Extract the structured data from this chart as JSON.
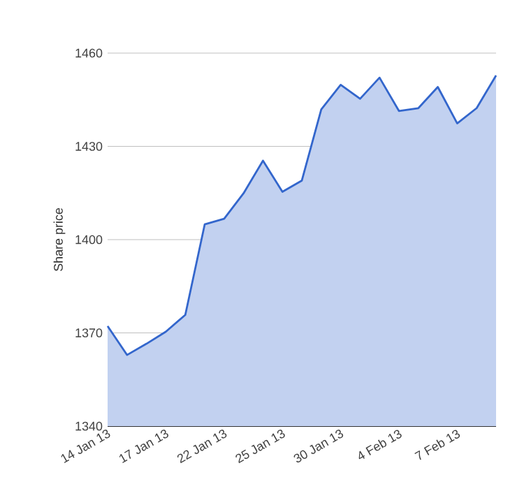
{
  "chart_data": {
    "type": "area",
    "ylabel": "Share price",
    "categories": [
      "14 Jan 13",
      null,
      null,
      "17 Jan 13",
      null,
      null,
      "22 Jan 13",
      null,
      null,
      "25 Jan 13",
      null,
      null,
      "30 Jan 13",
      null,
      null,
      "4 Feb 13",
      null,
      null,
      "7 Feb 13",
      null,
      null
    ],
    "series": [
      {
        "color": "#3366cc",
        "values": [
          1372.2,
          1362.9,
          1366.5,
          1370.4,
          1375.8,
          1404.9,
          1406.7,
          1414.9,
          1425.4,
          1415.4,
          1419,
          1441.9,
          1449.8,
          1445.3,
          1452.1,
          1441.4,
          1442.3,
          1449.1,
          1437.4,
          1442.3,
          1452.8
        ]
      }
    ],
    "ylim": [
      1340,
      1460
    ],
    "yticks": [
      1340,
      1370,
      1400,
      1430,
      1460
    ],
    "grid": "y"
  }
}
